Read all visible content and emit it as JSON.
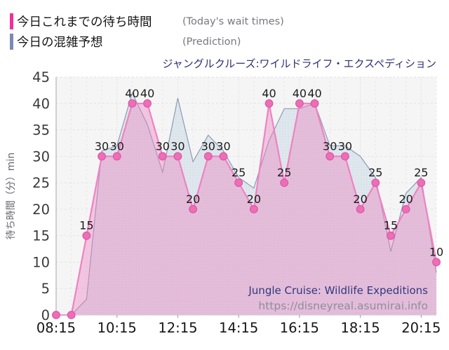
{
  "legend": {
    "actual": {
      "label_jp": "今日これまでの待ち時間",
      "label_en": "(Today's wait times)",
      "color": "#f2309a"
    },
    "prediction": {
      "label_jp": "今日の混雑予想",
      "label_en": "(Prediction)",
      "color": "#7d88b8"
    }
  },
  "chart_title": "ジャングルクルーズ:ワイルドライフ・エクスペディション",
  "watermark": {
    "line1": "Jungle Cruise: Wildlife Expeditions",
    "line2": "https://disneyreal.asumirai.info"
  },
  "chart_data": {
    "type": "area",
    "title": "ジャングルクルーズ:ワイルドライフ・エクスペディション",
    "xlabel": "",
    "ylabel": "待ち時間（分）min",
    "ylim": [
      0,
      45
    ],
    "y_ticks": [
      0,
      5,
      10,
      15,
      20,
      25,
      30,
      35,
      40,
      45
    ],
    "grid": true,
    "legend_position": "top-left",
    "x": [
      "08:15",
      "08:45",
      "09:15",
      "09:45",
      "10:15",
      "10:45",
      "11:15",
      "11:45",
      "12:15",
      "12:45",
      "13:15",
      "13:45",
      "14:15",
      "14:45",
      "15:15",
      "15:45",
      "16:15",
      "16:45",
      "17:15",
      "17:45",
      "18:15",
      "18:45",
      "19:15",
      "19:45",
      "20:15",
      "20:45"
    ],
    "x_tick_labels": [
      "08:15",
      "10:15",
      "12:15",
      "14:15",
      "16:15",
      "18:15",
      "20:15"
    ],
    "x_major_every": 4,
    "series": [
      {
        "name": "今日の混雑予想 (Prediction)",
        "kind": "area",
        "values": [
          0,
          0,
          3,
          31,
          32,
          42,
          36,
          27,
          41,
          29,
          34,
          31,
          26,
          24,
          33,
          39,
          39,
          40,
          32,
          32,
          30,
          26,
          12,
          23,
          26,
          8
        ],
        "line_color": "#8c9cb0",
        "fill_color": "#dbe4eb"
      },
      {
        "name": "今日これまでの待ち時間 (Today's wait times)",
        "kind": "line+markers+labels",
        "values": [
          0,
          0,
          15,
          30,
          30,
          40,
          40,
          30,
          30,
          20,
          30,
          30,
          25,
          20,
          40,
          25,
          40,
          40,
          30,
          30,
          20,
          25,
          15,
          20,
          25,
          10
        ],
        "line_color": "#ef82c1",
        "marker_color": "#ee6eb5",
        "marker_edge": "#d94fa3",
        "fill_color": "rgba(236,130,192,0.42)",
        "label_color": "#1c1c1c"
      }
    ],
    "style": {
      "plot_bg": "#f5f5f6",
      "grid_minor": "#e3e3e6",
      "grid_major": "#d5d5da",
      "spine": "#b4b4bc",
      "bottom_spine": "#c9c9cf",
      "tick_label_color": "#3a3a3a",
      "x_tick_label_color": "#141414",
      "axis_title_color": "#666670",
      "watermark_navy": "#2f3a7d",
      "watermark_gray": "#8e8e99"
    }
  }
}
